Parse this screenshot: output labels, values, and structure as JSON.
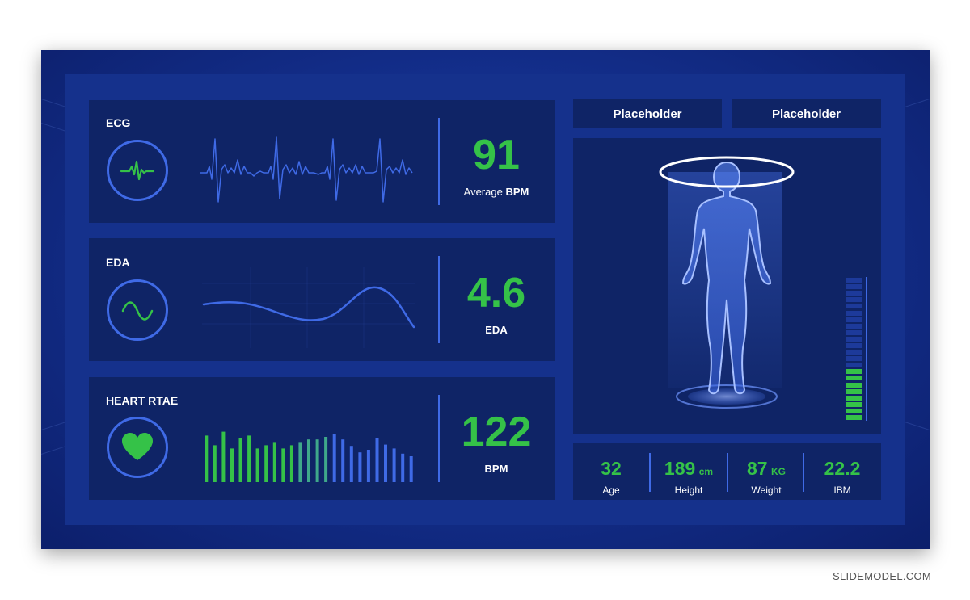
{
  "ecg": {
    "label": "ECG",
    "value": "91",
    "caption_prefix": "Average",
    "caption_unit": "BPM"
  },
  "eda": {
    "label": "EDA",
    "value": "4.6",
    "caption": "EDA"
  },
  "heart": {
    "label": "HEART RTAE",
    "value": "122",
    "caption": "BPM",
    "bars": [
      0.72,
      0.57,
      0.78,
      0.52,
      0.68,
      0.72,
      0.52,
      0.57,
      0.62,
      0.52,
      0.57,
      0.62,
      0.66,
      0.66,
      0.7,
      0.74,
      0.66,
      0.56,
      0.46,
      0.5,
      0.68,
      0.58,
      0.52,
      0.44,
      0.4
    ]
  },
  "placeholders": [
    "Placeholder",
    "Placeholder"
  ],
  "stats": [
    {
      "value": "32",
      "unit": "",
      "label": "Age"
    },
    {
      "value": "189",
      "unit": "cm",
      "label": "Height"
    },
    {
      "value": "87",
      "unit": "KG",
      "label": "Weight"
    },
    {
      "value": "22.2",
      "unit": "",
      "label": "IBM"
    }
  ],
  "level": {
    "filled": 8,
    "total": 22
  },
  "colors": {
    "accent_green": "#35c248",
    "accent_blue": "#3f6ae6",
    "panel": "#0f2466"
  },
  "footer": "SLIDEMODEL.COM"
}
